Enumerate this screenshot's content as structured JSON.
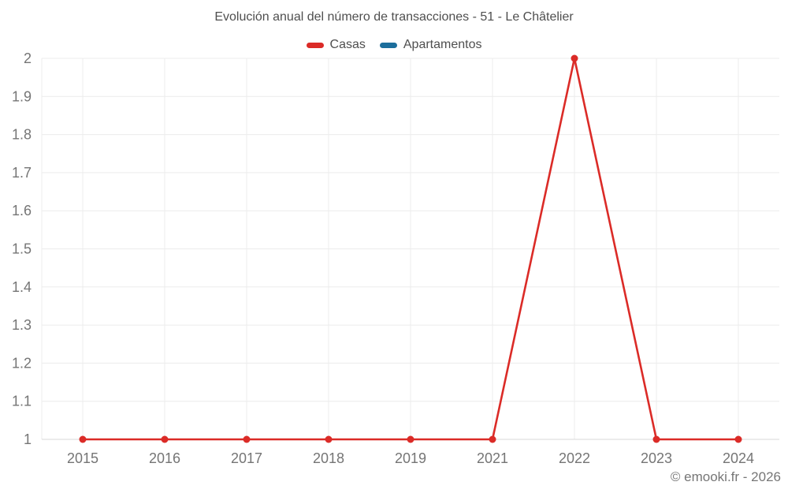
{
  "header": {
    "title": "Evolución anual del número de transacciones - 51 - Le Châtelier"
  },
  "legend": {
    "items": [
      {
        "label": "Casas",
        "color": "#db2b27"
      },
      {
        "label": "Apartamentos",
        "color": "#1c6e9c"
      }
    ]
  },
  "footer": {
    "credit": "© emooki.fr - 2026"
  },
  "colors": {
    "background": "#ffffff",
    "grid": "#ececec",
    "baseline": "#d9d9d9",
    "tick_text": "#757575",
    "title_text": "#4f4f4f",
    "casas": "#db2b27",
    "apartamentos": "#1c6e9c"
  },
  "chart_data": {
    "type": "line",
    "title": "Evolución anual del número de transacciones - 51 - Le Châtelier",
    "categories": [
      "2015",
      "2016",
      "2017",
      "2018",
      "2019",
      "2021",
      "2022",
      "2023",
      "2024"
    ],
    "series": [
      {
        "name": "Casas",
        "color": "#db2b27",
        "values": [
          1,
          1,
          1,
          1,
          1,
          1,
          2,
          1,
          1
        ],
        "marker": "circle"
      },
      {
        "name": "Apartamentos",
        "color": "#1c6e9c",
        "values": []
      }
    ],
    "xlabel": "",
    "ylabel": "",
    "ylim": [
      1,
      2
    ],
    "y_ticks": [
      1,
      1.1,
      1.2,
      1.3,
      1.4,
      1.5,
      1.6,
      1.7,
      1.8,
      1.9,
      2
    ],
    "y_tick_labels": [
      "1",
      "1.1",
      "1.2",
      "1.3",
      "1.4",
      "1.5",
      "1.6",
      "1.7",
      "1.8",
      "1.9",
      "2"
    ],
    "grid": true,
    "legend_position": "top"
  }
}
